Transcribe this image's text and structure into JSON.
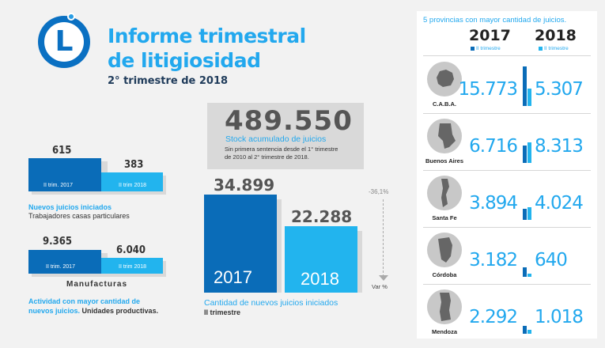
{
  "header": {
    "logo_letter": "L",
    "title_line1": "Informe trimestral",
    "title_line2": "de litigiosidad",
    "subtitle": "2° trimestre de 2018"
  },
  "casas_particulares": {
    "val_2017": "615",
    "val_2018": "383",
    "label_2017": "II trim. 2017",
    "label_2018": "II trim 2018",
    "caption_blue": "Nuevos juicios iniciados",
    "caption_dark": "Trabajadores casas particulares"
  },
  "manufacturas": {
    "val_2017": "9.365",
    "val_2018": "6.040",
    "label_2017": "II trim. 2017",
    "label_2018": "II trim 2018",
    "heading": "Manufacturas",
    "caption_blue_1": "Actividad con mayor cantidad de",
    "caption_blue_2": "nuevos juicios.",
    "caption_dark": "Unidades productivas."
  },
  "stock": {
    "value": "489.550",
    "label": "Stock acumulado de juicios",
    "note_1": "Sin primera sentencia desde el 1° trimestre",
    "note_2": "de 2010 al 2° trimestre de 2018."
  },
  "nuevos_juicios": {
    "val_2017": "34.899",
    "val_2018": "22.288",
    "year_2017": "2017",
    "year_2018": "2018",
    "variation": "-36,1%",
    "var_label": "Var %",
    "caption_blue": "Cantidad de nuevos juicios iniciados",
    "caption_dark": "II trimestre"
  },
  "provincias": {
    "title": "5 provincias con mayor cantidad de juicios.",
    "year_a": "2017",
    "year_b": "2018",
    "trim_label": "II trimestre",
    "rows": [
      {
        "name": "C.A.B.A.",
        "v2017": "15.773",
        "v2018": "5.307",
        "icon": "caba-map-icon"
      },
      {
        "name": "Buenos Aires",
        "v2017": "6.716",
        "v2018": "8.313",
        "icon": "buenos-aires-map-icon"
      },
      {
        "name": "Santa Fe",
        "v2017": "3.894",
        "v2018": "4.024",
        "icon": "santa-fe-map-icon"
      },
      {
        "name": "Córdoba",
        "v2017": "3.182",
        "v2018": "640",
        "icon": "cordoba-map-icon"
      },
      {
        "name": "Mendoza",
        "v2017": "2.292",
        "v2018": "1.018",
        "icon": "mendoza-map-icon"
      }
    ]
  },
  "colors": {
    "dark_blue": "#0a6cb8",
    "light_blue": "#22b4ee",
    "accent_text": "#22a8ee"
  }
}
